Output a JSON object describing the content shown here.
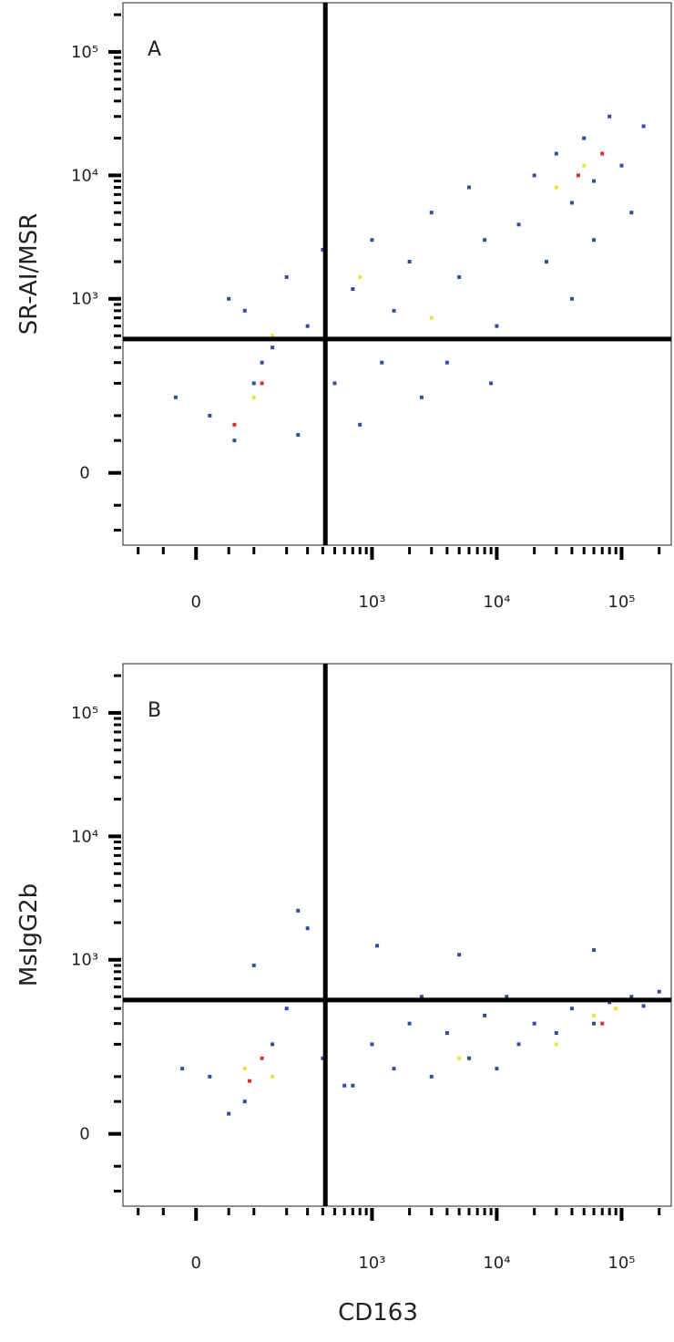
{
  "chart_data": [
    {
      "type": "scatter",
      "panel_label": "A",
      "ylabel": "SR-AI/MSR",
      "xlabel": "CD163",
      "scale": "biexponential",
      "xlim": [
        -140,
        250000
      ],
      "ylim": [
        -140,
        250000
      ],
      "xticks": [
        0,
        {
          "value": 1000,
          "label": "10³"
        },
        {
          "value": 10000,
          "label": "10⁴"
        },
        {
          "value": 100000,
          "label": "10⁵"
        }
      ],
      "yticks": [
        0,
        {
          "value": 1000,
          "label": "10³"
        },
        {
          "value": 10000,
          "label": "10⁴"
        },
        {
          "value": 100000,
          "label": "10⁵"
        }
      ],
      "xminorticks": [
        -100,
        -50,
        50,
        100,
        200,
        300,
        400,
        500,
        600,
        700,
        800,
        900,
        2000,
        3000,
        4000,
        5000,
        6000,
        7000,
        8000,
        9000,
        20000,
        30000,
        40000,
        50000,
        60000,
        70000,
        80000,
        90000,
        200000
      ],
      "yminorticks": [
        -100,
        -50,
        50,
        100,
        200,
        300,
        400,
        500,
        600,
        700,
        800,
        900,
        2000,
        3000,
        4000,
        5000,
        6000,
        7000,
        8000,
        9000,
        20000,
        30000,
        40000,
        50000,
        60000,
        70000,
        80000,
        90000,
        200000
      ],
      "gate": {
        "x": 420,
        "y": 470
      },
      "series": [
        {
          "color": "#2f4f9e",
          "x": [
            20,
            60,
            100,
            -30,
            150,
            80,
            200,
            120,
            300,
            500,
            700,
            1000,
            1500,
            2000,
            3000,
            4000,
            5000,
            6000,
            8000,
            10000,
            15000,
            20000,
            25000,
            30000,
            40000,
            50000,
            60000,
            80000,
            100000,
            150000,
            120000,
            40000,
            2500,
            800,
            400,
            250,
            50,
            1200,
            9000,
            60000
          ],
          "y": [
            100,
            50,
            200,
            150,
            400,
            800,
            1500,
            300,
            600,
            200,
            1200,
            3000,
            800,
            2000,
            5000,
            300,
            1500,
            8000,
            3000,
            600,
            4000,
            10000,
            2000,
            15000,
            6000,
            20000,
            9000,
            30000,
            12000,
            25000,
            5000,
            1000,
            150,
            80,
            2500,
            60,
            1000,
            300,
            200,
            3000
          ]
        },
        {
          "color": "#e8e23a",
          "x": [
            100,
            150,
            30000,
            50000,
            800,
            3000
          ],
          "y": [
            150,
            500,
            8000,
            12000,
            1500,
            700
          ]
        },
        {
          "color": "#e0302a",
          "x": [
            60,
            45000,
            70000,
            120
          ],
          "y": [
            80,
            10000,
            15000,
            200
          ]
        }
      ]
    },
    {
      "type": "scatter",
      "panel_label": "B",
      "ylabel": "MsIgG2b",
      "xlabel": "CD163",
      "scale": "biexponential",
      "xlim": [
        -140,
        250000
      ],
      "ylim": [
        -140,
        250000
      ],
      "xticks": [
        0,
        {
          "value": 1000,
          "label": "10³"
        },
        {
          "value": 10000,
          "label": "10⁴"
        },
        {
          "value": 100000,
          "label": "10⁵"
        }
      ],
      "yticks": [
        0,
        {
          "value": 1000,
          "label": "10³"
        },
        {
          "value": 10000,
          "label": "10⁴"
        },
        {
          "value": 100000,
          "label": "10⁵"
        }
      ],
      "xminorticks": [
        -100,
        -50,
        50,
        100,
        200,
        300,
        400,
        500,
        600,
        700,
        800,
        900,
        2000,
        3000,
        4000,
        5000,
        6000,
        7000,
        8000,
        9000,
        20000,
        30000,
        40000,
        50000,
        60000,
        70000,
        80000,
        90000,
        200000
      ],
      "yminorticks": [
        -100,
        -50,
        50,
        100,
        200,
        300,
        400,
        500,
        600,
        700,
        800,
        900,
        2000,
        3000,
        4000,
        5000,
        6000,
        7000,
        8000,
        9000,
        20000,
        30000,
        40000,
        50000,
        60000,
        70000,
        80000,
        90000,
        200000
      ],
      "gate": {
        "x": 420,
        "y": 470
      },
      "series": [
        {
          "color": "#2f4f9e",
          "x": [
            20,
            80,
            150,
            -20,
            200,
            100,
            300,
            400,
            700,
            1000,
            1500,
            2000,
            3000,
            4000,
            6000,
            8000,
            10000,
            15000,
            20000,
            30000,
            40000,
            60000,
            80000,
            120000,
            150000,
            200000,
            1100,
            5000,
            60000,
            250,
            600,
            2500,
            12000,
            50
          ],
          "y": [
            100,
            50,
            200,
            120,
            400,
            900,
            1800,
            150,
            80,
            200,
            120,
            300,
            100,
            250,
            150,
            350,
            120,
            200,
            300,
            250,
            400,
            300,
            450,
            500,
            420,
            550,
            1300,
            1100,
            1200,
            2500,
            80,
            500,
            500,
            30
          ]
        },
        {
          "color": "#e8e23a",
          "x": [
            80,
            150,
            30000,
            60000,
            5000,
            90000
          ],
          "y": [
            120,
            100,
            200,
            350,
            150,
            400
          ]
        },
        {
          "color": "#e0302a",
          "x": [
            90,
            70000,
            120
          ],
          "y": [
            90,
            300,
            150
          ]
        }
      ]
    }
  ]
}
